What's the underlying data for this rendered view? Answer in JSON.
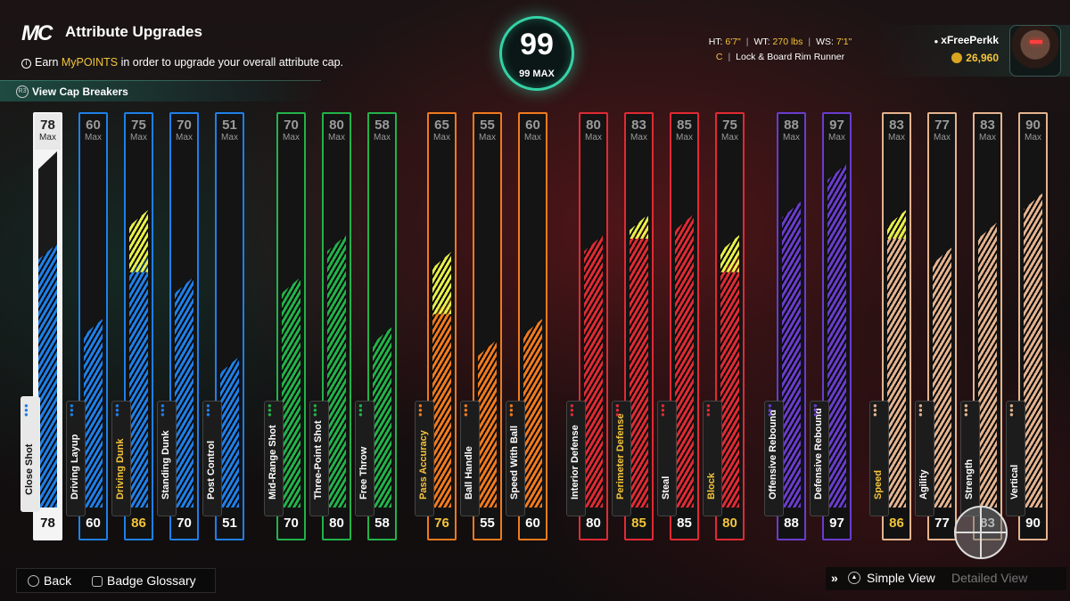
{
  "header": {
    "logo": "MC",
    "title": "Attribute Upgrades",
    "earn_prefix": "Earn ",
    "earn_highlight": "MyPOINTS",
    "earn_suffix": " in order to upgrade your overall attribute cap.",
    "cap_breakers": "View Cap Breakers"
  },
  "overall": {
    "value": "99",
    "max_label": "99 MAX"
  },
  "player": {
    "ht_label": "HT:",
    "ht": "6'7\"",
    "wt_label": "WT:",
    "wt": "270 lbs",
    "ws_label": "WS:",
    "ws": "7'1\"",
    "position": "C",
    "archetype": "Lock & Board Rim Runner",
    "username": "xFreePerkk",
    "vc": "26,960"
  },
  "max_word": "Max",
  "colors": {
    "blue": "#1f7fe8",
    "green": "#23b24a",
    "orange": "#f07a1e",
    "red": "#e02a34",
    "purple": "#6a3ccc",
    "tan": "#e4b38f",
    "white": "#f4f4f4",
    "boost": "#e8f04a",
    "highlight_text": "#f4c43a"
  },
  "attributes": [
    {
      "name": "Close Shot",
      "max": "78",
      "value": "78",
      "color": "white",
      "boost": 0,
      "highlight": false
    },
    {
      "name": "Driving Layup",
      "max": "60",
      "value": "60",
      "color": "blue",
      "boost": 0,
      "highlight": false
    },
    {
      "name": "Driving Dunk",
      "max": "75",
      "value": "86",
      "color": "blue",
      "boost": 11,
      "highlight": true
    },
    {
      "name": "Standing Dunk",
      "max": "70",
      "value": "70",
      "color": "blue",
      "boost": 0,
      "highlight": false
    },
    {
      "name": "Post Control",
      "max": "51",
      "value": "51",
      "color": "blue",
      "boost": 0,
      "highlight": false
    },
    {
      "name": "Mid-Range Shot",
      "max": "70",
      "value": "70",
      "color": "green",
      "boost": 0,
      "highlight": false
    },
    {
      "name": "Three-Point Shot",
      "max": "80",
      "value": "80",
      "color": "green",
      "boost": 0,
      "highlight": false
    },
    {
      "name": "Free Throw",
      "max": "58",
      "value": "58",
      "color": "green",
      "boost": 0,
      "highlight": false
    },
    {
      "name": "Pass Accuracy",
      "max": "65",
      "value": "76",
      "color": "orange",
      "boost": 11,
      "highlight": true
    },
    {
      "name": "Ball Handle",
      "max": "55",
      "value": "55",
      "color": "orange",
      "boost": 0,
      "highlight": false
    },
    {
      "name": "Speed With Ball",
      "max": "60",
      "value": "60",
      "color": "orange",
      "boost": 0,
      "highlight": false
    },
    {
      "name": "Interior Defense",
      "max": "80",
      "value": "80",
      "color": "red",
      "boost": 0,
      "highlight": false
    },
    {
      "name": "Perimeter Defense",
      "max": "83",
      "value": "85",
      "color": "red",
      "boost": 2,
      "highlight": true
    },
    {
      "name": "Steal",
      "max": "85",
      "value": "85",
      "color": "red",
      "boost": 0,
      "highlight": false
    },
    {
      "name": "Block",
      "max": "75",
      "value": "80",
      "color": "red",
      "boost": 5,
      "highlight": true
    },
    {
      "name": "Offensive Rebound",
      "max": "88",
      "value": "88",
      "color": "purple",
      "boost": 0,
      "highlight": false
    },
    {
      "name": "Defensive Rebound",
      "max": "97",
      "value": "97",
      "color": "purple",
      "boost": 0,
      "highlight": false
    },
    {
      "name": "Speed",
      "max": "83",
      "value": "86",
      "color": "tan",
      "boost": 3,
      "highlight": true
    },
    {
      "name": "Agility",
      "max": "77",
      "value": "77",
      "color": "tan",
      "boost": 0,
      "highlight": false
    },
    {
      "name": "Strength",
      "max": "83",
      "value": "83",
      "color": "tan",
      "boost": 0,
      "highlight": false
    },
    {
      "name": "Vertical",
      "max": "90",
      "value": "90",
      "color": "tan",
      "boost": 0,
      "highlight": false
    }
  ],
  "footer": {
    "back": "Back",
    "glossary": "Badge Glossary",
    "simple_view": "Simple View",
    "detailed_view": "Detailed View"
  }
}
